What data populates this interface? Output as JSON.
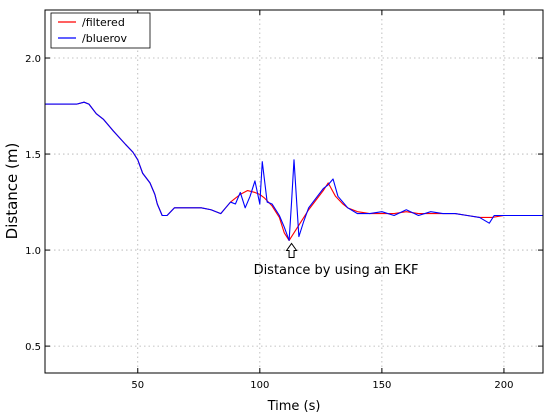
{
  "chart_data": {
    "type": "line",
    "title": "",
    "xlabel": "Time (s)",
    "ylabel": "Distance (m)",
    "xlim": [
      12,
      216
    ],
    "ylim": [
      0.36,
      2.25
    ],
    "xticks": [
      50,
      100,
      150,
      200
    ],
    "yticks": [
      0.5,
      1.0,
      1.5,
      2.0
    ],
    "xtick_labels": [
      "50",
      "100",
      "150",
      "200"
    ],
    "ytick_labels": [
      "0.5",
      "1.0",
      "1.5",
      "2.0"
    ],
    "grid": true,
    "legend_position": "top-left",
    "series": [
      {
        "name": "/filtered",
        "color": "#ff0000",
        "x": [
          12,
          20,
          25,
          28,
          30,
          33,
          36,
          40,
          45,
          48,
          50,
          52,
          55,
          57,
          58,
          60,
          62,
          65,
          68,
          72,
          76,
          80,
          84,
          86,
          88,
          90,
          92,
          95,
          98,
          100,
          102,
          105,
          108,
          110,
          112,
          114,
          117,
          120,
          123,
          126,
          128,
          131,
          134,
          136,
          140,
          145,
          150,
          155,
          160,
          165,
          170,
          175,
          180,
          185,
          190,
          195,
          200,
          205,
          210,
          216
        ],
        "y": [
          1.76,
          1.76,
          1.76,
          1.77,
          1.76,
          1.71,
          1.68,
          1.62,
          1.55,
          1.51,
          1.47,
          1.4,
          1.35,
          1.29,
          1.24,
          1.18,
          1.18,
          1.22,
          1.22,
          1.22,
          1.22,
          1.21,
          1.19,
          1.22,
          1.25,
          1.27,
          1.29,
          1.31,
          1.3,
          1.29,
          1.27,
          1.23,
          1.17,
          1.09,
          1.05,
          1.09,
          1.15,
          1.21,
          1.26,
          1.31,
          1.35,
          1.28,
          1.24,
          1.22,
          1.2,
          1.19,
          1.19,
          1.19,
          1.2,
          1.19,
          1.19,
          1.19,
          1.19,
          1.18,
          1.17,
          1.17,
          1.18,
          1.18,
          1.18,
          1.18
        ]
      },
      {
        "name": "/bluerov",
        "color": "#0000ff",
        "x": [
          12,
          20,
          25,
          28,
          30,
          33,
          36,
          40,
          45,
          48,
          50,
          52,
          55,
          57,
          58,
          60,
          62,
          65,
          68,
          72,
          76,
          80,
          84,
          86,
          88,
          90,
          92,
          94,
          96,
          98,
          100,
          101,
          103,
          105,
          108,
          110,
          112,
          113,
          114,
          116,
          118,
          120,
          123,
          126,
          128,
          130,
          132,
          134,
          136,
          140,
          145,
          150,
          155,
          160,
          165,
          170,
          175,
          180,
          185,
          190,
          194,
          196,
          200,
          205,
          210,
          216
        ],
        "y": [
          1.76,
          1.76,
          1.76,
          1.77,
          1.76,
          1.71,
          1.68,
          1.62,
          1.55,
          1.51,
          1.47,
          1.4,
          1.35,
          1.29,
          1.24,
          1.18,
          1.18,
          1.22,
          1.22,
          1.22,
          1.22,
          1.21,
          1.19,
          1.22,
          1.25,
          1.24,
          1.3,
          1.22,
          1.28,
          1.36,
          1.24,
          1.46,
          1.25,
          1.24,
          1.18,
          1.12,
          1.05,
          1.25,
          1.47,
          1.07,
          1.15,
          1.22,
          1.27,
          1.32,
          1.34,
          1.37,
          1.28,
          1.25,
          1.22,
          1.19,
          1.19,
          1.2,
          1.18,
          1.21,
          1.18,
          1.2,
          1.19,
          1.19,
          1.18,
          1.17,
          1.14,
          1.18,
          1.18,
          1.18,
          1.18,
          1.18
        ]
      }
    ],
    "annotation": {
      "text": "Distance by using an EKF",
      "arrow_x": 113,
      "arrow_y": 1.05
    }
  }
}
